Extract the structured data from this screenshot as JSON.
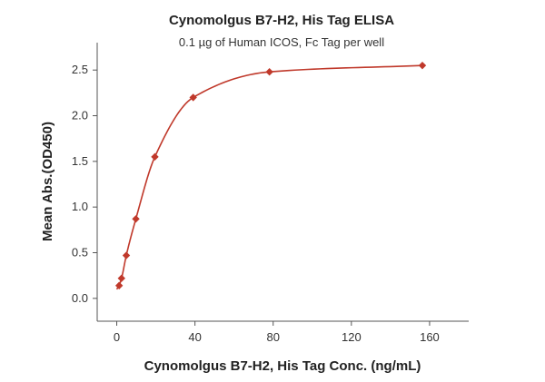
{
  "chart_data": {
    "type": "scatter",
    "title": "Cynomolgus B7-H2, His Tag ELISA",
    "subtitle": "0.1 µg of Human ICOS, Fc Tag per well",
    "xlabel": "Cynomolgus B7-H2, His Tag Conc. (ng/mL)",
    "ylabel": "Mean Abs.(OD450)",
    "xlim": [
      -10,
      180
    ],
    "ylim": [
      -0.25,
      2.8
    ],
    "xticks": [
      0,
      40,
      80,
      120,
      160
    ],
    "xtick_labels": [
      "0",
      "40",
      "80",
      "120",
      "160"
    ],
    "yticks": [
      0.0,
      0.5,
      1.0,
      1.5,
      2.0,
      2.5
    ],
    "ytick_labels": [
      "0.0",
      "0.5",
      "1.0",
      "1.5",
      "2.0",
      "2.5"
    ],
    "grid": false,
    "series": [
      {
        "color": "#c0392b",
        "marker": "diamond",
        "x": [
          1.22,
          2.44,
          4.88,
          9.77,
          19.5,
          39.1,
          78.1,
          156.3
        ],
        "y": [
          0.14,
          0.22,
          0.47,
          0.87,
          1.55,
          2.2,
          2.48,
          2.55
        ],
        "fit_line": true
      }
    ]
  }
}
